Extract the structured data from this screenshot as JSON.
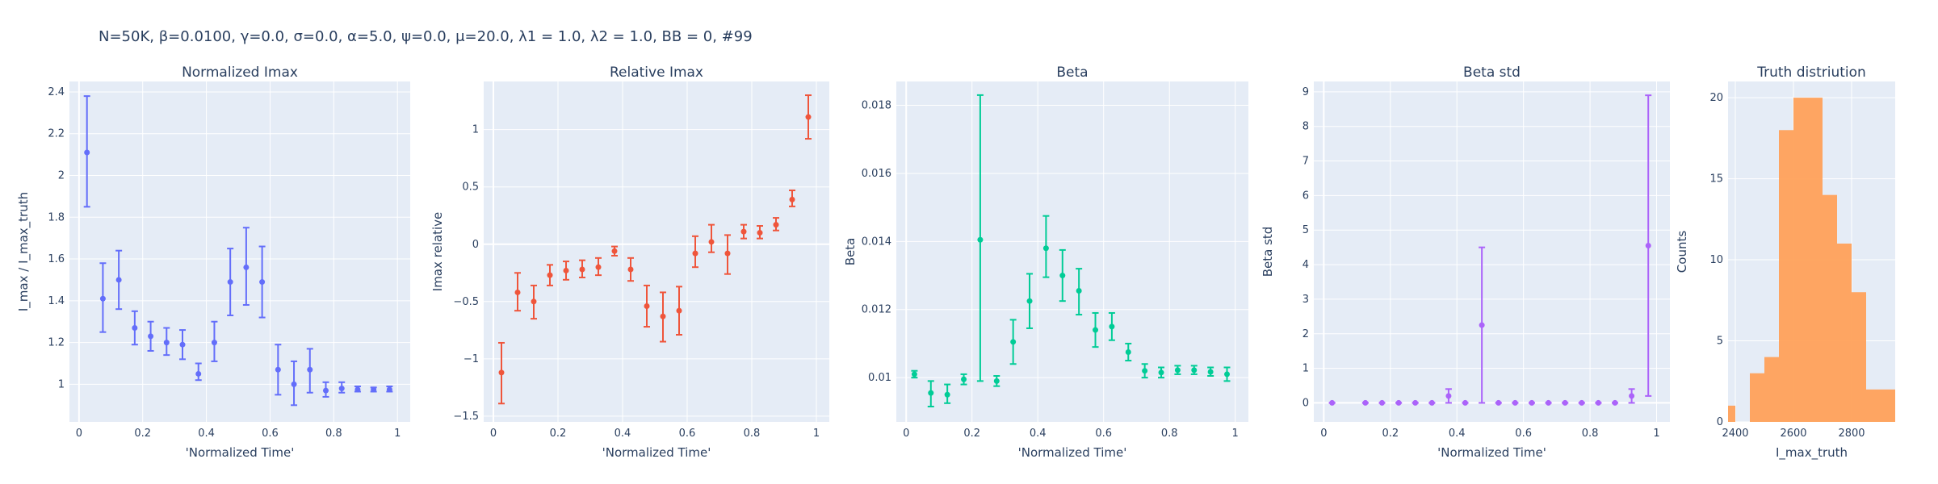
{
  "suptitle": "N=50K, β=0.0100, γ=0.0, σ=0.0,  α=5.0, ψ=0.0, μ=20.0, λ1 = 1.0, λ2 = 1.0, BB = 0, #99",
  "chart_data": [
    {
      "type": "scatter",
      "title": "Normalized Imax",
      "xlabel": "'Normalized Time'",
      "ylabel": "I_max / I_max_truth",
      "color": "#636efa",
      "xlim": [
        -0.03,
        1.04
      ],
      "ylim": [
        0.82,
        2.45
      ],
      "xticks": [
        0,
        0.2,
        0.4,
        0.6,
        0.8,
        1
      ],
      "xticklabels": [
        "0",
        "0.2",
        "0.4",
        "0.6",
        "0.8",
        "1"
      ],
      "yticks": [
        1,
        1.2,
        1.4,
        1.6,
        1.8,
        2,
        2.2,
        2.4
      ],
      "yticklabels": [
        "1",
        "1.2",
        "1.4",
        "1.6",
        "1.8",
        "2",
        "2.2",
        "2.4"
      ],
      "x": [
        0.025,
        0.075,
        0.125,
        0.175,
        0.225,
        0.275,
        0.325,
        0.375,
        0.425,
        0.475,
        0.525,
        0.575,
        0.625,
        0.675,
        0.725,
        0.775,
        0.825,
        0.875,
        0.925,
        0.975
      ],
      "y": [
        2.11,
        1.41,
        1.5,
        1.27,
        1.23,
        1.2,
        1.19,
        1.05,
        1.2,
        1.49,
        1.56,
        1.49,
        1.07,
        1.0,
        1.07,
        0.97,
        0.98,
        0.975,
        0.975,
        0.975
      ],
      "err_lo": [
        1.85,
        1.25,
        1.36,
        1.19,
        1.16,
        1.14,
        1.12,
        1.02,
        1.11,
        1.33,
        1.38,
        1.32,
        0.95,
        0.9,
        0.96,
        0.94,
        0.96,
        0.965,
        0.965,
        0.965
      ],
      "err_hi": [
        2.38,
        1.58,
        1.64,
        1.35,
        1.3,
        1.27,
        1.26,
        1.1,
        1.3,
        1.65,
        1.75,
        1.66,
        1.19,
        1.11,
        1.17,
        1.01,
        1.01,
        0.99,
        0.985,
        0.99
      ]
    },
    {
      "type": "scatter",
      "title": "Relative Imax",
      "xlabel": "'Normalized Time'",
      "ylabel": "Imax relative",
      "color": "#ef553b",
      "xlim": [
        -0.03,
        1.04
      ],
      "ylim": [
        -1.55,
        1.42
      ],
      "xticks": [
        0,
        0.2,
        0.4,
        0.6,
        0.8,
        1
      ],
      "xticklabels": [
        "0",
        "0.2",
        "0.4",
        "0.6",
        "0.8",
        "1"
      ],
      "yticks": [
        -1.5,
        -1,
        -0.5,
        0,
        0.5,
        1
      ],
      "yticklabels": [
        "−1.5",
        "−1",
        "−0.5",
        "0",
        "0.5",
        "1"
      ],
      "x": [
        0.025,
        0.075,
        0.125,
        0.175,
        0.225,
        0.275,
        0.325,
        0.375,
        0.425,
        0.475,
        0.525,
        0.575,
        0.625,
        0.675,
        0.725,
        0.775,
        0.825,
        0.875,
        0.925,
        0.975
      ],
      "y": [
        -1.12,
        -0.42,
        -0.5,
        -0.27,
        -0.23,
        -0.22,
        -0.2,
        -0.06,
        -0.22,
        -0.54,
        -0.63,
        -0.58,
        -0.08,
        0.02,
        -0.08,
        0.11,
        0.1,
        0.17,
        0.39,
        1.11
      ],
      "err_lo": [
        -1.39,
        -0.58,
        -0.65,
        -0.36,
        -0.31,
        -0.29,
        -0.27,
        -0.1,
        -0.32,
        -0.72,
        -0.85,
        -0.79,
        -0.2,
        -0.07,
        -0.26,
        0.05,
        0.05,
        0.12,
        0.33,
        0.92
      ],
      "err_hi": [
        -0.86,
        -0.25,
        -0.36,
        -0.18,
        -0.15,
        -0.14,
        -0.12,
        -0.02,
        -0.12,
        -0.36,
        -0.42,
        -0.37,
        0.07,
        0.17,
        0.08,
        0.17,
        0.16,
        0.23,
        0.47,
        1.3
      ]
    },
    {
      "type": "scatter",
      "title": "Beta",
      "xlabel": "'Normalized Time'",
      "ylabel": "Beta",
      "color": "#00cc96",
      "xlim": [
        -0.03,
        1.04
      ],
      "ylim": [
        0.0087,
        0.0187
      ],
      "xticks": [
        0,
        0.2,
        0.4,
        0.6,
        0.8,
        1
      ],
      "xticklabels": [
        "0",
        "0.2",
        "0.4",
        "0.6",
        "0.8",
        "1"
      ],
      "yticks": [
        0.01,
        0.012,
        0.014,
        0.016,
        0.018
      ],
      "yticklabels": [
        "0.01",
        "0.012",
        "0.014",
        "0.016",
        "0.018"
      ],
      "x": [
        0.025,
        0.075,
        0.125,
        0.175,
        0.225,
        0.275,
        0.325,
        0.375,
        0.425,
        0.475,
        0.525,
        0.575,
        0.625,
        0.675,
        0.725,
        0.775,
        0.825,
        0.875,
        0.925,
        0.975
      ],
      "y": [
        0.0101,
        0.00955,
        0.0095,
        0.00995,
        0.01405,
        0.0099,
        0.01105,
        0.01225,
        0.0138,
        0.013,
        0.01255,
        0.0114,
        0.0115,
        0.01075,
        0.0102,
        0.01015,
        0.01022,
        0.01022,
        0.01017,
        0.0101
      ],
      "err_lo": [
        0.01,
        0.00915,
        0.00925,
        0.0098,
        0.0099,
        0.00975,
        0.0104,
        0.01145,
        0.01295,
        0.01225,
        0.01185,
        0.0109,
        0.0111,
        0.0105,
        0.01,
        0.01,
        0.0101,
        0.0101,
        0.01005,
        0.0099
      ],
      "err_hi": [
        0.0102,
        0.0099,
        0.0098,
        0.0101,
        0.0183,
        0.01005,
        0.0117,
        0.01305,
        0.01475,
        0.01375,
        0.0132,
        0.0119,
        0.0119,
        0.011,
        0.0104,
        0.0103,
        0.01035,
        0.01035,
        0.0103,
        0.0103
      ]
    },
    {
      "type": "scatter",
      "title": "Beta std",
      "xlabel": "'Normalized Time'",
      "ylabel": "Beta std",
      "color": "#ab63fa",
      "xlim": [
        -0.03,
        1.04
      ],
      "ylim": [
        -0.55,
        9.3
      ],
      "xticks": [
        0,
        0.2,
        0.4,
        0.6,
        0.8,
        1
      ],
      "xticklabels": [
        "0",
        "0.2",
        "0.4",
        "0.6",
        "0.8",
        "1"
      ],
      "yticks": [
        0,
        1,
        2,
        3,
        4,
        5,
        6,
        7,
        8,
        9
      ],
      "yticklabels": [
        "0",
        "1",
        "2",
        "3",
        "4",
        "5",
        "6",
        "7",
        "8",
        "9"
      ],
      "x": [
        0.025,
        0.125,
        0.175,
        0.225,
        0.275,
        0.325,
        0.375,
        0.425,
        0.475,
        0.525,
        0.575,
        0.625,
        0.675,
        0.725,
        0.775,
        0.825,
        0.875,
        0.925,
        0.975
      ],
      "y": [
        0.0,
        0.0,
        0.0,
        0.0,
        0.0,
        0.0,
        0.2,
        0.0,
        2.25,
        0.0,
        0.0,
        0.0,
        0.0,
        0.0,
        0.0,
        0.0,
        0.0,
        0.2,
        4.55
      ],
      "err_lo": [
        0.0,
        0.0,
        0.0,
        0.0,
        0.0,
        0.0,
        0.0,
        0.0,
        0.0,
        0.0,
        0.0,
        0.0,
        0.0,
        0.0,
        0.0,
        0.0,
        0.0,
        0.0,
        0.2
      ],
      "err_hi": [
        0.0,
        0.0,
        0.0,
        0.0,
        0.0,
        0.0,
        0.4,
        0.0,
        4.5,
        0.0,
        0.0,
        0.0,
        0.0,
        0.0,
        0.0,
        0.0,
        0.0,
        0.4,
        8.9
      ]
    },
    {
      "type": "bar",
      "title": "Truth distriution",
      "xlabel": "I_max_truth",
      "ylabel": "Counts",
      "color": "#ffa15a",
      "xlim": [
        2375,
        2950
      ],
      "ylim": [
        0,
        21
      ],
      "xticks": [
        2400,
        2600,
        2800
      ],
      "xticklabels": [
        "2400",
        "2600",
        "2800"
      ],
      "yticks": [
        0,
        5,
        10,
        15,
        20
      ],
      "yticklabels": [
        "0",
        "5",
        "10",
        "15",
        "20"
      ],
      "bin_edges": [
        2375,
        2400,
        2450,
        2500,
        2550,
        2600,
        2650,
        2700,
        2750,
        2800,
        2850,
        2950
      ],
      "counts": [
        1,
        0,
        3,
        4,
        18,
        20,
        20,
        14,
        11,
        8,
        2
      ]
    }
  ]
}
